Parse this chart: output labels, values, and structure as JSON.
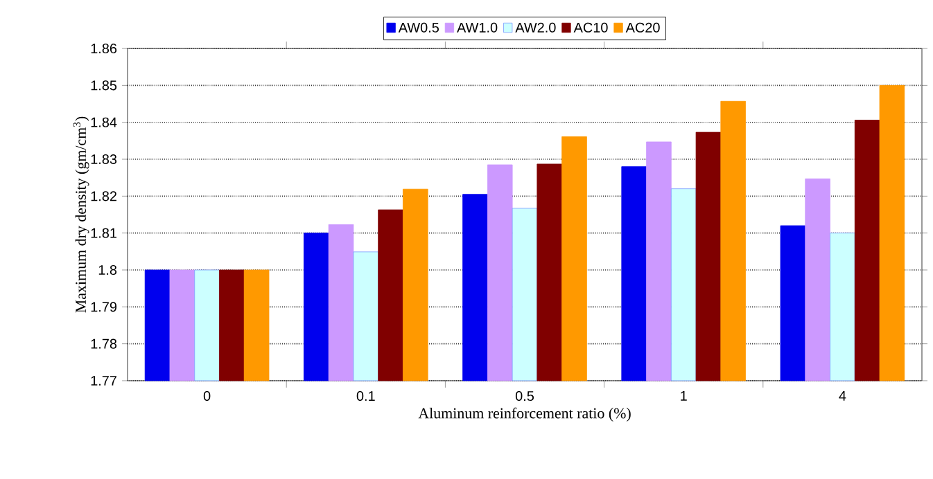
{
  "chart_data": {
    "type": "bar",
    "xlabel": "Aluminum reinforcement ratio (%)",
    "ylabel": "Maximum dry density (gm/cm$^{3}$)",
    "categories": [
      "0",
      "0.1",
      "0.5",
      "1",
      "4"
    ],
    "series": [
      {
        "name": "AW0.5",
        "color": "#0000ee",
        "values": [
          1.8,
          1.81,
          1.8205,
          1.828,
          1.812
        ]
      },
      {
        "name": "AW1.0",
        "color": "#cc99ff",
        "values": [
          1.8,
          1.8123,
          1.8285,
          1.8347,
          1.8247
        ]
      },
      {
        "name": "AW2.0",
        "color": "#ccffff",
        "values": [
          1.8,
          1.8049,
          1.8167,
          1.822,
          1.81
        ]
      },
      {
        "name": "AC10",
        "color": "#800000",
        "values": [
          1.8,
          1.8163,
          1.8287,
          1.8373,
          1.8406
        ]
      },
      {
        "name": "AC20",
        "color": "#ff9900",
        "values": [
          1.8,
          1.8219,
          1.8361,
          1.8457,
          1.85
        ]
      }
    ],
    "ylim": [
      1.77,
      1.86
    ],
    "yticks": [
      1.77,
      1.78,
      1.79,
      1.8,
      1.81,
      1.82,
      1.83,
      1.84,
      1.85,
      1.86
    ],
    "grid": "y",
    "legend": "top"
  }
}
